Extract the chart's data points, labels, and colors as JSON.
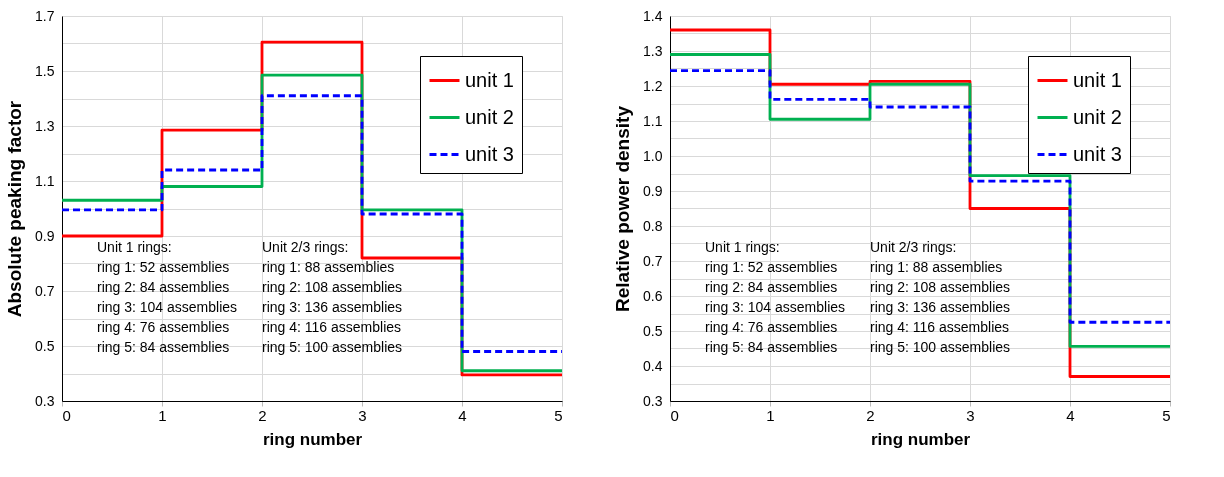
{
  "chart_data": [
    {
      "type": "step",
      "xlabel": "ring number",
      "ylabel": "Absolute peaking factor",
      "x": [
        0,
        1,
        2,
        3,
        4,
        5
      ],
      "xlim": [
        0,
        5
      ],
      "xticks": [
        0,
        1,
        2,
        3,
        4,
        5
      ],
      "ylim": [
        0.3,
        1.7
      ],
      "yticks": [
        0.3,
        {
          "value": 0.4,
          "label": null
        },
        0.5,
        {
          "value": 0.6,
          "label": null
        },
        0.7,
        {
          "value": 0.8,
          "label": null
        },
        0.9,
        {
          "value": 1.0,
          "label": null
        },
        1.1,
        {
          "value": 1.2,
          "label": null
        },
        1.3,
        {
          "value": 1.4,
          "label": null
        },
        1.5,
        {
          "value": 1.6,
          "label": null
        },
        1.7
      ],
      "grid": true,
      "legend": "top right",
      "series": [
        {
          "name": "unit 1",
          "color": "#ff0000",
          "line_style": "solid",
          "values": [
            0.9,
            1.285,
            1.605,
            0.82,
            0.395,
            0.395
          ]
        },
        {
          "name": "unit 2",
          "color": "#00b050",
          "line_style": "solid",
          "values": [
            1.03,
            1.08,
            1.485,
            0.995,
            0.41,
            0.41
          ]
        },
        {
          "name": "unit 3",
          "color": "#0000ff",
          "line_style": "dashed",
          "values": [
            0.995,
            1.14,
            1.41,
            0.98,
            0.48,
            0.48
          ]
        }
      ],
      "annotations": [
        "Unit 1 rings:\nring 1: 52 assemblies\nring 2: 84 assemblies\nring 3: 104 assemblies\nring 4: 76 assemblies\nring 5: 84 assemblies",
        "Unit 2/3 rings:\nring 1: 88 assemblies\nring 2: 108 assemblies\nring 3: 136 assemblies\nring 4: 116 assemblies\nring 5: 100 assemblies"
      ]
    },
    {
      "type": "step",
      "xlabel": "ring number",
      "ylabel": "Relative power density",
      "x": [
        0,
        1,
        2,
        3,
        4,
        5
      ],
      "xlim": [
        0,
        5
      ],
      "xticks": [
        0,
        1,
        2,
        3,
        4,
        5
      ],
      "ylim": [
        0.3,
        1.4
      ],
      "yticks": [
        0.3,
        {
          "value": 0.35,
          "label": null
        },
        0.4,
        {
          "value": 0.45,
          "label": null
        },
        0.5,
        {
          "value": 0.55,
          "label": null
        },
        0.6,
        {
          "value": 0.65,
          "label": null
        },
        0.7,
        {
          "value": 0.75,
          "label": null
        },
        0.8,
        {
          "value": 0.85,
          "label": null
        },
        0.9,
        {
          "value": 0.95,
          "label": null
        },
        {
          "value": 1.0,
          "label": "1.0"
        },
        {
          "value": 1.05,
          "label": null
        },
        1.1,
        {
          "value": 1.15,
          "label": null
        },
        1.2,
        {
          "value": 1.25,
          "label": null
        },
        1.3,
        {
          "value": 1.35,
          "label": null
        },
        1.4
      ],
      "grid": true,
      "legend": "top right",
      "series": [
        {
          "name": "unit 1",
          "color": "#ff0000",
          "line_style": "solid",
          "values": [
            1.36,
            1.205,
            1.213,
            0.85,
            0.37,
            0.37
          ]
        },
        {
          "name": "unit 2",
          "color": "#00b050",
          "line_style": "solid",
          "values": [
            1.29,
            1.105,
            1.205,
            0.944,
            0.456,
            0.456
          ]
        },
        {
          "name": "unit 3",
          "color": "#0000ff",
          "line_style": "dashed",
          "values": [
            1.244,
            1.162,
            1.14,
            0.928,
            0.525,
            0.525
          ]
        }
      ],
      "annotations": [
        "Unit 1 rings:\nring 1: 52 assemblies\nring 2: 84 assemblies\nring 3: 104 assemblies\nring 4: 76 assemblies\nring 5: 84 assemblies",
        "Unit 2/3 rings:\nring 1: 88 assemblies\nring 2: 108 assemblies\nring 3: 136 assemblies\nring 4: 116 assemblies\nring 5: 100 assemblies"
      ]
    }
  ]
}
